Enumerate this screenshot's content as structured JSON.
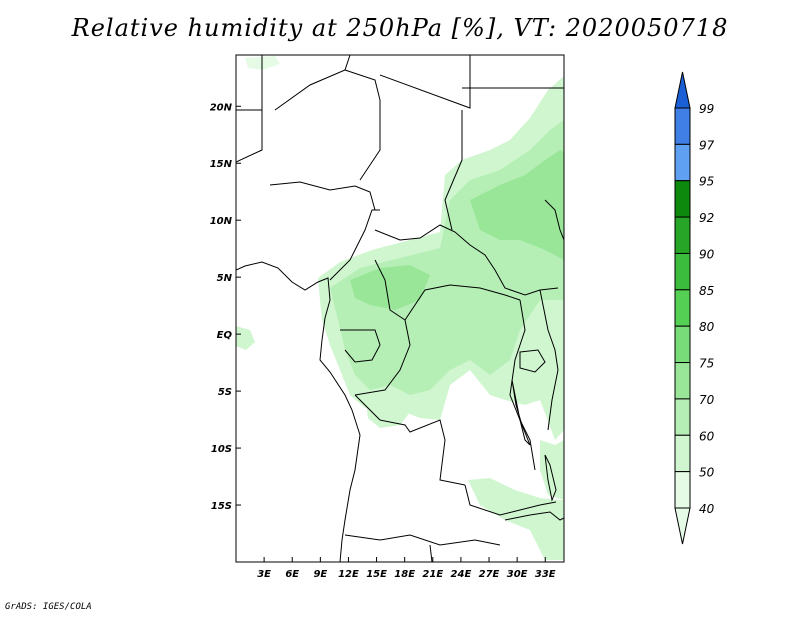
{
  "title": "Relative humidity at 250hPa [%], VT: 2020050718",
  "credit": "GrADS: IGES/COLA",
  "map": {
    "lon_range": [
      0,
      35
    ],
    "lat_range": [
      -20,
      24.5
    ],
    "lon_ticks": [
      "3E",
      "6E",
      "9E",
      "12E",
      "15E",
      "18E",
      "21E",
      "24E",
      "27E",
      "30E",
      "33E"
    ],
    "lon_tick_values": [
      3,
      6,
      9,
      12,
      15,
      18,
      21,
      24,
      27,
      30,
      33
    ],
    "lat_ticks": [
      "20N",
      "15N",
      "10N",
      "5N",
      "EQ",
      "5S",
      "10S",
      "15S"
    ],
    "lat_tick_values": [
      20,
      15,
      10,
      5,
      0,
      -5,
      -10,
      -15
    ]
  },
  "colorbar": {
    "labels": [
      "99",
      "97",
      "95",
      "92",
      "90",
      "85",
      "80",
      "75",
      "70",
      "60",
      "50",
      "40"
    ],
    "colors": [
      "#1a5fd6",
      "#3f7fe6",
      "#5fa0f2",
      "#0d8a0d",
      "#26a526",
      "#3cbc3c",
      "#54d054",
      "#78dc78",
      "#99e699",
      "#b6efb6",
      "#cff6cf",
      "#e6fbe6"
    ]
  }
}
